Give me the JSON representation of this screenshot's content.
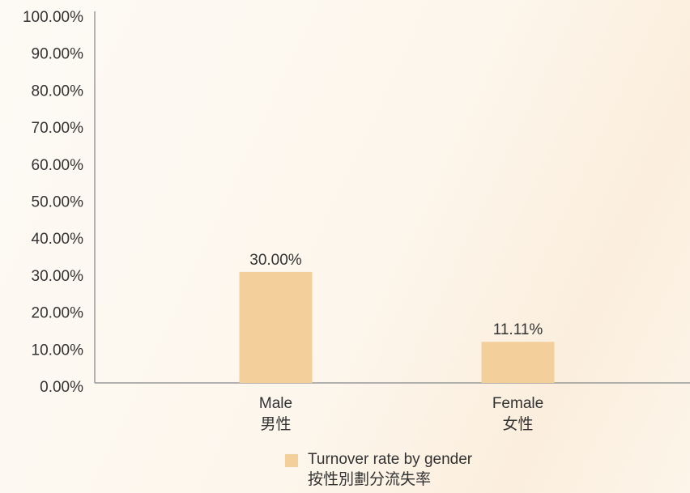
{
  "chart_data": {
    "type": "bar",
    "categories": [
      "Male\n男性",
      "Female\n女性"
    ],
    "series": [
      {
        "name": "Turnover rate by gender\n按性別劃分流失率",
        "color": "#f2cf9b",
        "values": [
          30,
          11.11
        ],
        "value_labels": [
          "30.00%",
          "11.11%"
        ]
      }
    ],
    "ylim": [
      0,
      100
    ],
    "yticks": [
      {
        "value": 0,
        "label": "0.00%"
      },
      {
        "value": 10,
        "label": "10.00%"
      },
      {
        "value": 20,
        "label": "20.00%"
      },
      {
        "value": 30,
        "label": "30.00%"
      },
      {
        "value": 40,
        "label": "40.00%"
      },
      {
        "value": 50,
        "label": "50.00%"
      },
      {
        "value": 60,
        "label": "60.00%"
      },
      {
        "value": 70,
        "label": "70.00%"
      },
      {
        "value": 80,
        "label": "80.00%"
      },
      {
        "value": 90,
        "label": "90.00%"
      },
      {
        "value": 100,
        "label": "100.00%"
      }
    ],
    "grid": false
  }
}
